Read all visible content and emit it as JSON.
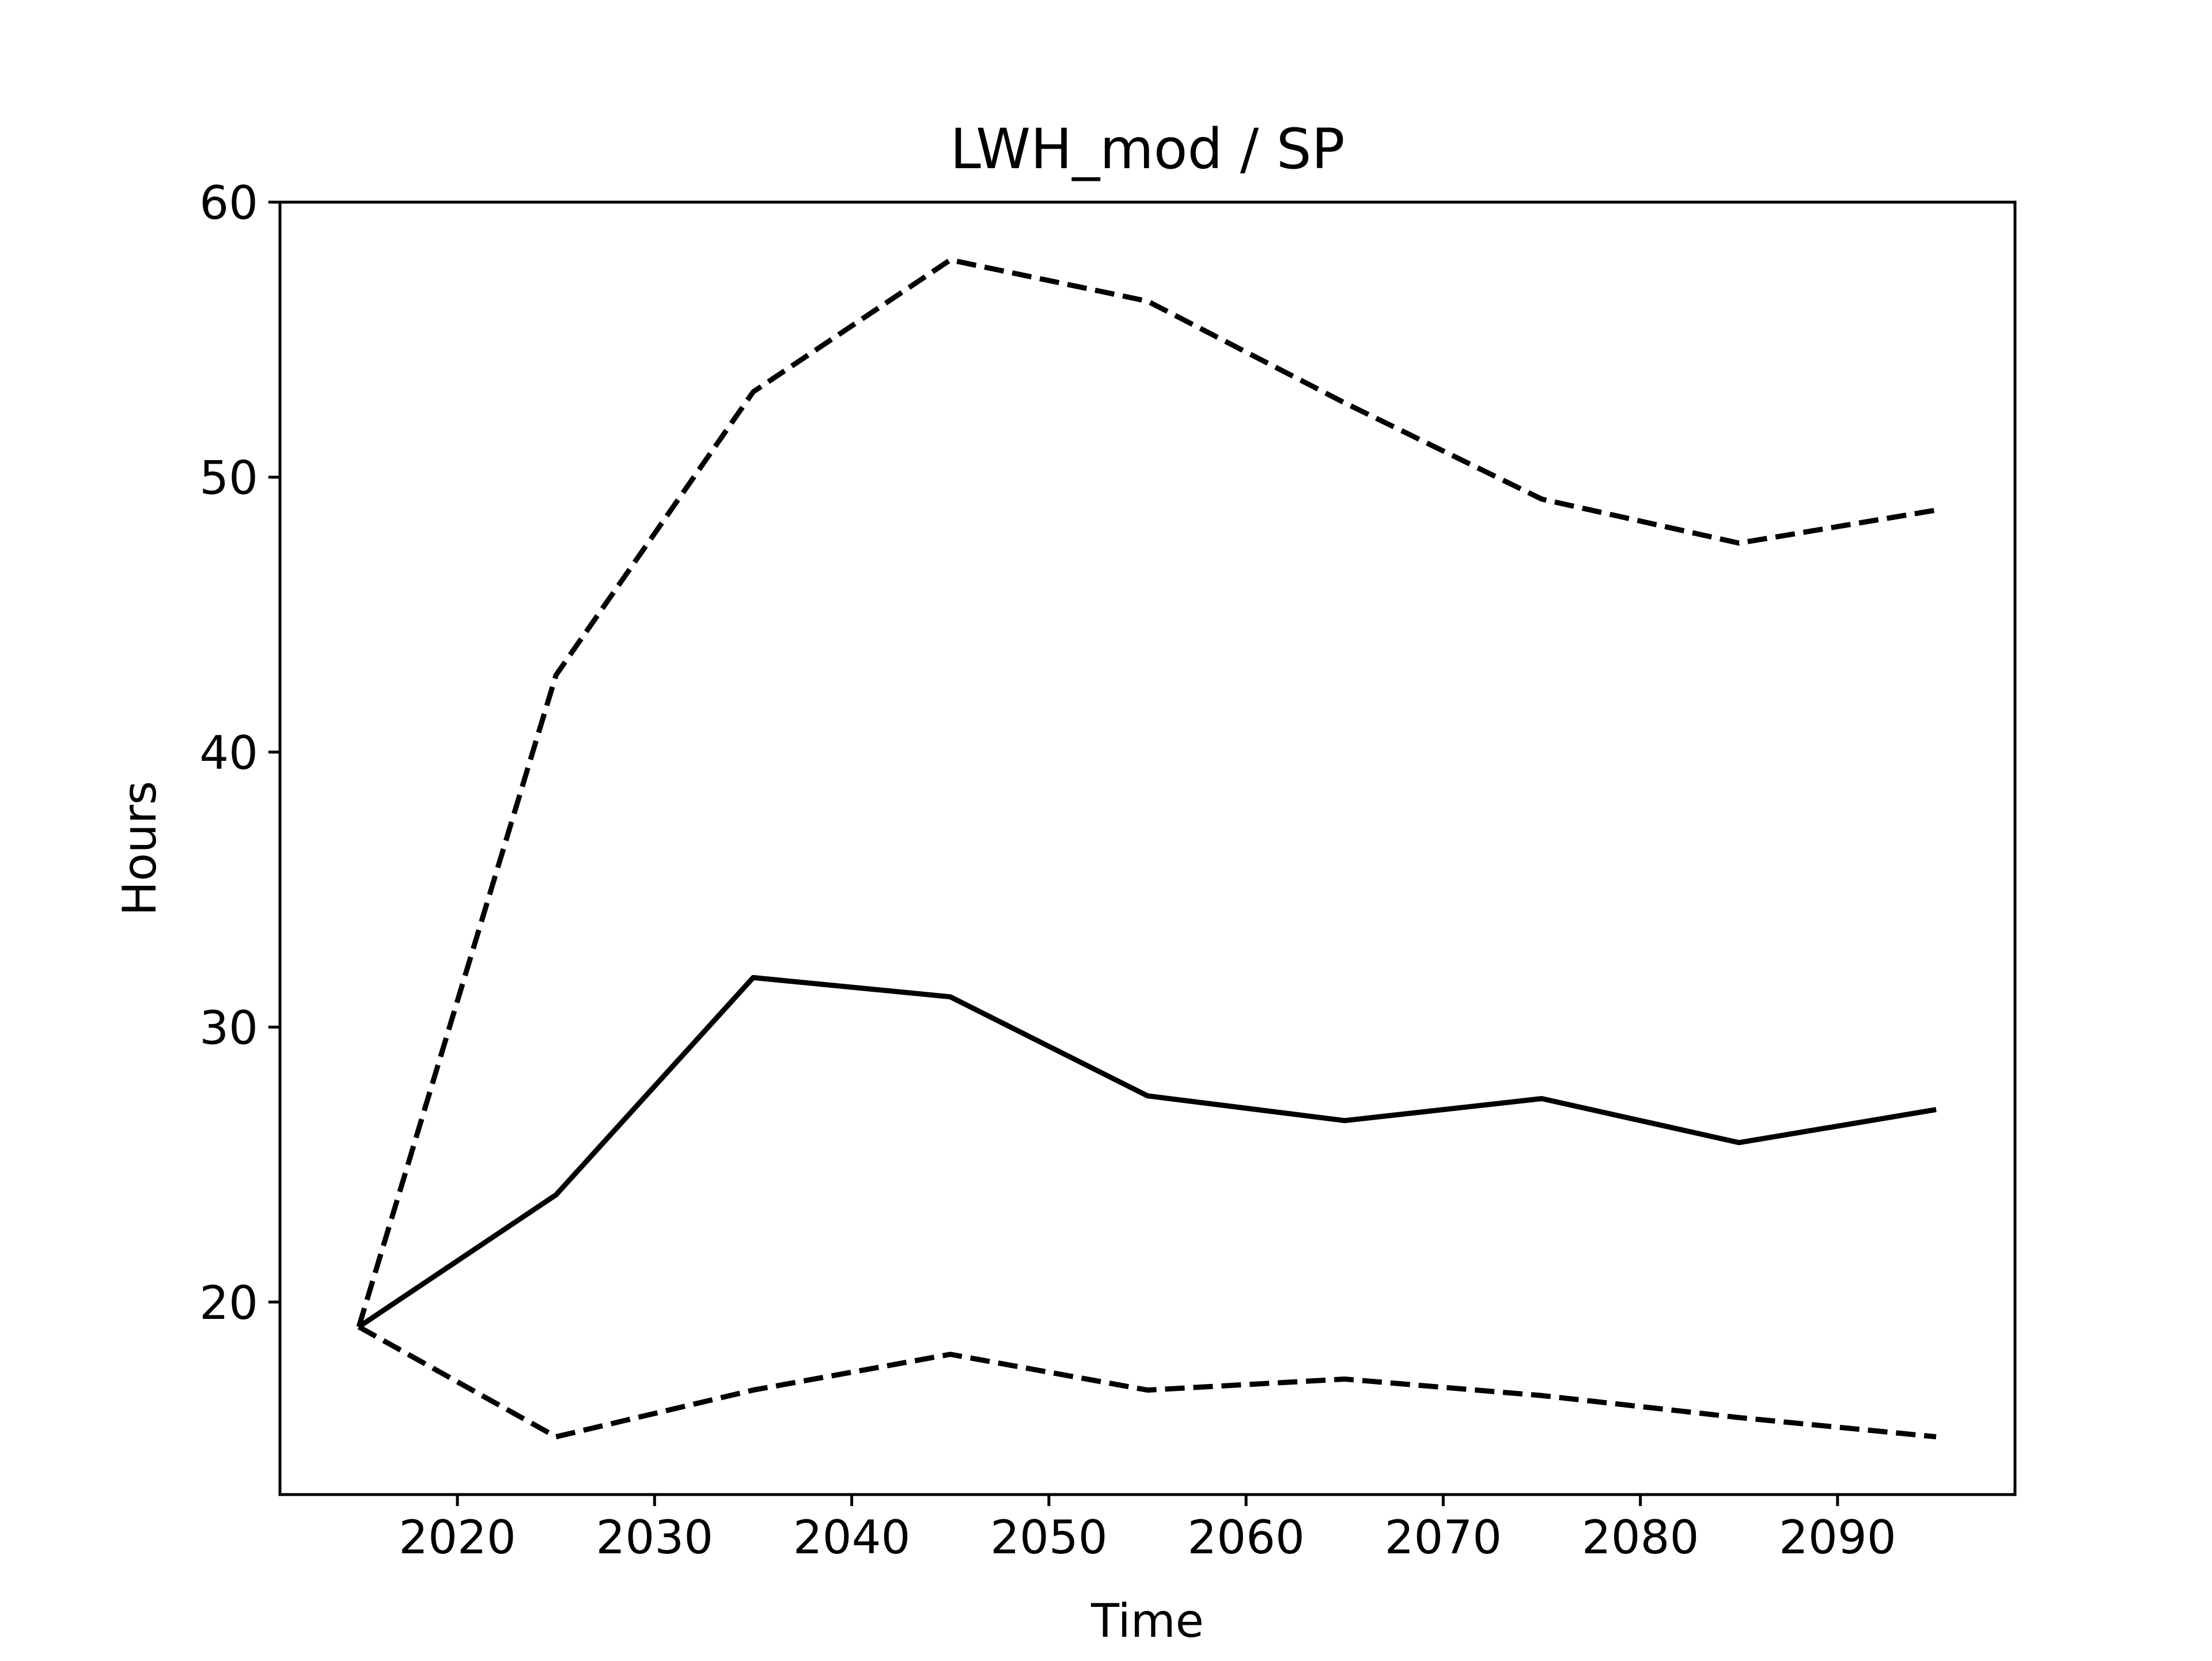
{
  "chart_data": {
    "type": "line",
    "title": "LWH_mod / SP",
    "xlabel": "Time",
    "ylabel": "Hours",
    "xlim": [
      2011,
      2099
    ],
    "ylim": [
      13,
      60
    ],
    "xticks": [
      2020,
      2030,
      2040,
      2050,
      2060,
      2070,
      2080,
      2090
    ],
    "yticks": [
      20,
      30,
      40,
      50,
      60
    ],
    "grid": false,
    "legend": "none",
    "x": [
      2015,
      2025,
      2035,
      2045,
      2055,
      2065,
      2075,
      2085,
      2095
    ],
    "series": [
      {
        "style": "dashed",
        "color": "#000000",
        "values": [
          19.1,
          42.8,
          53.1,
          57.9,
          56.4,
          52.7,
          49.2,
          47.6,
          48.8
        ]
      },
      {
        "style": "solid",
        "color": "#000000",
        "values": [
          19.1,
          23.9,
          31.8,
          31.1,
          27.5,
          26.6,
          27.4,
          25.8,
          27.0
        ]
      },
      {
        "style": "dashed",
        "color": "#000000",
        "values": [
          19.1,
          15.1,
          16.8,
          18.1,
          16.8,
          17.2,
          16.6,
          15.8,
          15.1
        ]
      }
    ]
  }
}
